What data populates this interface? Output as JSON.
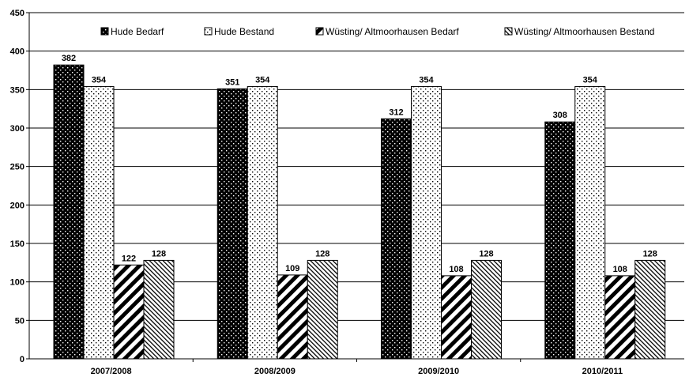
{
  "chart_data": {
    "type": "bar",
    "categories": [
      "2007/2008",
      "2008/2009",
      "2009/2010",
      "2010/2011"
    ],
    "series": [
      {
        "name": "Hude Bedarf",
        "values": [
          382,
          351,
          312,
          308
        ],
        "pattern": "dark-dots"
      },
      {
        "name": "Hude Bestand",
        "values": [
          354,
          354,
          354,
          354
        ],
        "pattern": "light-dots"
      },
      {
        "name": "Wüsting/ Altmoorhausen Bedarf",
        "values": [
          122,
          109,
          108,
          108
        ],
        "pattern": "wide-diagonal"
      },
      {
        "name": "Wüsting/ Altmoorhausen Bestand",
        "values": [
          128,
          128,
          128,
          128
        ],
        "pattern": "fine-diagonal"
      }
    ],
    "ylim": [
      0,
      450
    ],
    "yticks": [
      0,
      50,
      100,
      150,
      200,
      250,
      300,
      350,
      400,
      450
    ],
    "grid": true,
    "legend": "top-right",
    "colors": {
      "ink": "#000000",
      "background": "#ffffff"
    }
  }
}
